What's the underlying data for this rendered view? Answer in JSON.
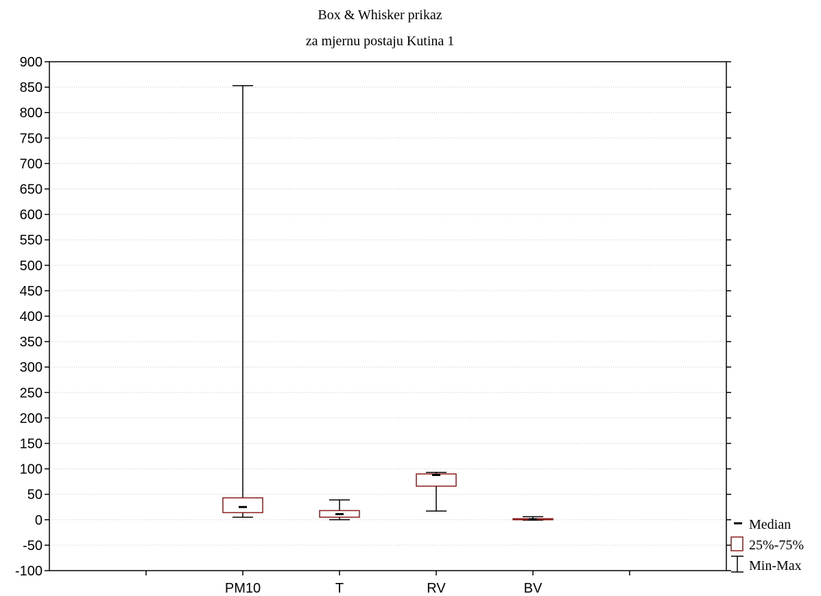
{
  "chart_data": {
    "type": "box",
    "title": "Box & Whisker prikaz",
    "subtitle": "za mjernu postaju Kutina 1",
    "xlabel": "",
    "ylabel": "",
    "ylim": [
      -100,
      900
    ],
    "yticks": [
      900,
      850,
      800,
      750,
      700,
      650,
      600,
      550,
      500,
      450,
      400,
      350,
      300,
      250,
      200,
      150,
      100,
      50,
      0,
      -50,
      -100
    ],
    "grid": true,
    "legend_position": "bottom-right outside",
    "categories": [
      "PM10",
      "T",
      "RV",
      "BV"
    ],
    "boxes": [
      {
        "name": "PM10",
        "min": 5,
        "q1": 14,
        "median": 25,
        "q3": 43,
        "max": 853
      },
      {
        "name": "T",
        "min": 0,
        "q1": 5,
        "median": 11,
        "q3": 18,
        "max": 39
      },
      {
        "name": "RV",
        "min": 17,
        "q1": 66,
        "median": 88,
        "q3": 90,
        "max": 93
      },
      {
        "name": "BV",
        "min": -1,
        "q1": 0,
        "median": 1,
        "q3": 2,
        "max": 6
      }
    ],
    "legend": [
      {
        "symbol": "median",
        "label": "Median"
      },
      {
        "symbol": "box",
        "label": "25%-75%"
      },
      {
        "symbol": "whisker",
        "label": "Min-Max"
      }
    ],
    "colors": {
      "box": "#8b1a1a",
      "whisker": "#000000",
      "grid": "#c8c8c8"
    }
  }
}
